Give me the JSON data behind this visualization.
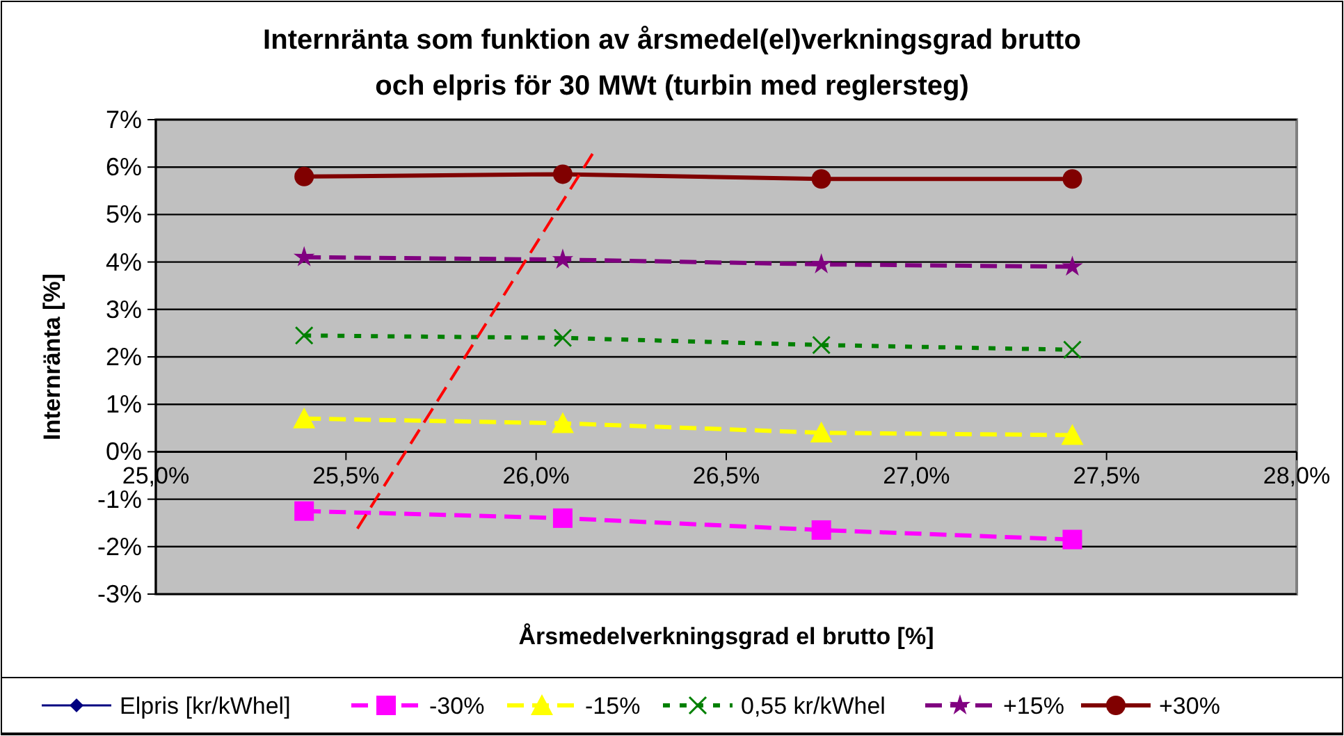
{
  "chart_data": {
    "type": "line",
    "title": "Internränta som funktion av årsmedel(el)verkningsgrad brutto\noch elpris för 30 MWt  (turbin med reglersteg)",
    "xlabel": "Årsmedelverkningsgrad el brutto [%]",
    "ylabel": "Internränta [%]",
    "x": [
      25.39,
      26.07,
      26.75,
      27.41
    ],
    "xlim": [
      25,
      28
    ],
    "xticks": [
      {
        "value": 25,
        "label": "25,0%"
      },
      {
        "value": 25.5,
        "label": "25,5%"
      },
      {
        "value": 26,
        "label": "26,0%"
      },
      {
        "value": 26.5,
        "label": "26,5%"
      },
      {
        "value": 27,
        "label": "27,0%"
      },
      {
        "value": 27.5,
        "label": "27,5%"
      },
      {
        "value": 28,
        "label": "28,0%"
      }
    ],
    "ylim": [
      -3,
      7
    ],
    "yticks": [
      {
        "value": -3,
        "label": "-3%"
      },
      {
        "value": -2,
        "label": "-2%"
      },
      {
        "value": -1,
        "label": "-1%"
      },
      {
        "value": 0,
        "label": "0%"
      },
      {
        "value": 1,
        "label": "1%"
      },
      {
        "value": 2,
        "label": "2%"
      },
      {
        "value": 3,
        "label": "3%"
      },
      {
        "value": 4,
        "label": "4%"
      },
      {
        "value": 5,
        "label": "5%"
      },
      {
        "value": 6,
        "label": "6%"
      },
      {
        "value": 7,
        "label": "7%"
      }
    ],
    "grid": "y",
    "legend": "bottom",
    "series": [
      {
        "name": "Elpris [kr/kWhel]",
        "color": "#000080",
        "values": [
          null,
          null,
          null,
          null
        ],
        "marker": "diamond",
        "line_style": "solid"
      },
      {
        "name": "-30%",
        "color": "#ff00ff",
        "values": [
          -1.25,
          -1.4,
          -1.65,
          -1.85
        ],
        "marker": "square",
        "line_style": "dashed"
      },
      {
        "name": "-15%",
        "color": "#ffff00",
        "values": [
          0.7,
          0.6,
          0.4,
          0.35
        ],
        "marker": "triangle",
        "line_style": "dashed"
      },
      {
        "name": "0,55 kr/kWhel",
        "color": "#008000",
        "values": [
          2.45,
          2.4,
          2.25,
          2.15
        ],
        "marker": "cross",
        "line_style": "dotted"
      },
      {
        "name": "+15%",
        "color": "#800080",
        "values": [
          4.1,
          4.05,
          3.95,
          3.9
        ],
        "marker": "star",
        "line_style": "dashed"
      },
      {
        "name": "+30%",
        "color": "#800000",
        "values": [
          5.8,
          5.85,
          5.75,
          5.75
        ],
        "marker": "circle",
        "line_style": "solid"
      },
      {
        "color": "#ff0000",
        "x": [
          25.53,
          26.15
        ],
        "values": [
          -1.62,
          6.3
        ],
        "marker": "none",
        "line_style": "dashed"
      }
    ]
  }
}
